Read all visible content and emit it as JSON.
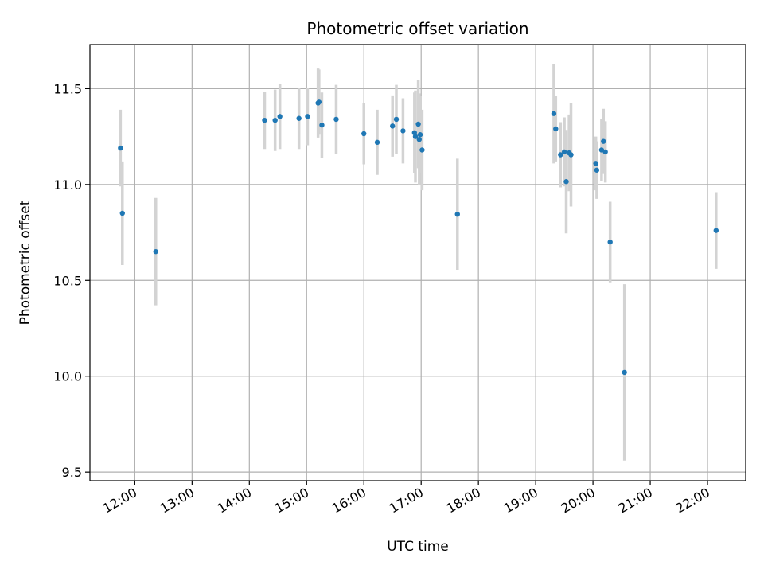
{
  "chart_data": {
    "type": "scatter",
    "title": "Photometric offset variation",
    "xlabel": "UTC time",
    "ylabel": "Photometric offset",
    "x_tick_labels": [
      "12:00",
      "13:00",
      "14:00",
      "15:00",
      "16:00",
      "17:00",
      "18:00",
      "19:00",
      "20:00",
      "21:00",
      "22:00"
    ],
    "x_ticks_hours": [
      12,
      13,
      14,
      15,
      16,
      17,
      18,
      19,
      20,
      21,
      22
    ],
    "y_tick_labels": [
      "9.5",
      "10.0",
      "10.5",
      "11.0",
      "11.5"
    ],
    "y_ticks": [
      9.5,
      10.0,
      10.5,
      11.0,
      11.5
    ],
    "xlim": [
      "11:13",
      "22:40"
    ],
    "ylim": [
      9.455,
      11.73
    ],
    "grid": true,
    "colors": {
      "marker": "#1f77b4",
      "errorbar": "#d3d3d3",
      "grid": "#b0b0b0"
    },
    "points": [
      {
        "x": "11:45",
        "y": 11.19,
        "err": 0.2
      },
      {
        "x": "11:47",
        "y": 10.85,
        "err": 0.27
      },
      {
        "x": "12:22",
        "y": 10.65,
        "err": 0.28
      },
      {
        "x": "14:16",
        "y": 11.335,
        "err": 0.15
      },
      {
        "x": "14:27",
        "y": 11.335,
        "err": 0.16
      },
      {
        "x": "14:32",
        "y": 11.355,
        "err": 0.17
      },
      {
        "x": "14:52",
        "y": 11.345,
        "err": 0.16
      },
      {
        "x": "15:01",
        "y": 11.355,
        "err": 0.15
      },
      {
        "x": "15:12",
        "y": 11.425,
        "err": 0.18
      },
      {
        "x": "15:13",
        "y": 11.43,
        "err": 0.17
      },
      {
        "x": "15:16",
        "y": 11.31,
        "err": 0.17
      },
      {
        "x": "15:31",
        "y": 11.34,
        "err": 0.18
      },
      {
        "x": "16:00",
        "y": 11.265,
        "err": 0.16
      },
      {
        "x": "16:14",
        "y": 11.22,
        "err": 0.17
      },
      {
        "x": "16:30",
        "y": 11.305,
        "err": 0.16
      },
      {
        "x": "16:34",
        "y": 11.34,
        "err": 0.18
      },
      {
        "x": "16:41",
        "y": 11.28,
        "err": 0.17
      },
      {
        "x": "16:53",
        "y": 11.27,
        "err": 0.21
      },
      {
        "x": "16:54",
        "y": 11.25,
        "err": 0.24
      },
      {
        "x": "16:57",
        "y": 11.315,
        "err": 0.23
      },
      {
        "x": "16:58",
        "y": 11.235,
        "err": 0.24
      },
      {
        "x": "16:59",
        "y": 11.26,
        "err": 0.2
      },
      {
        "x": "17:01",
        "y": 11.18,
        "err": 0.21
      },
      {
        "x": "17:38",
        "y": 10.845,
        "err": 0.29
      },
      {
        "x": "19:19",
        "y": 11.37,
        "err": 0.26
      },
      {
        "x": "19:21",
        "y": 11.29,
        "err": 0.17
      },
      {
        "x": "19:26",
        "y": 11.155,
        "err": 0.17
      },
      {
        "x": "19:30",
        "y": 11.17,
        "err": 0.18
      },
      {
        "x": "19:32",
        "y": 11.015,
        "err": 0.27
      },
      {
        "x": "19:35",
        "y": 11.165,
        "err": 0.2
      },
      {
        "x": "19:37",
        "y": 11.155,
        "err": 0.27
      },
      {
        "x": "20:03",
        "y": 11.11,
        "err": 0.14
      },
      {
        "x": "20:04",
        "y": 11.075,
        "err": 0.15
      },
      {
        "x": "20:09",
        "y": 11.18,
        "err": 0.16
      },
      {
        "x": "20:11",
        "y": 11.225,
        "err": 0.17
      },
      {
        "x": "20:13",
        "y": 11.17,
        "err": 0.16
      },
      {
        "x": "20:18",
        "y": 10.7,
        "err": 0.21
      },
      {
        "x": "20:33",
        "y": 10.02,
        "err": 0.46
      },
      {
        "x": "22:09",
        "y": 10.76,
        "err": 0.2
      }
    ]
  }
}
